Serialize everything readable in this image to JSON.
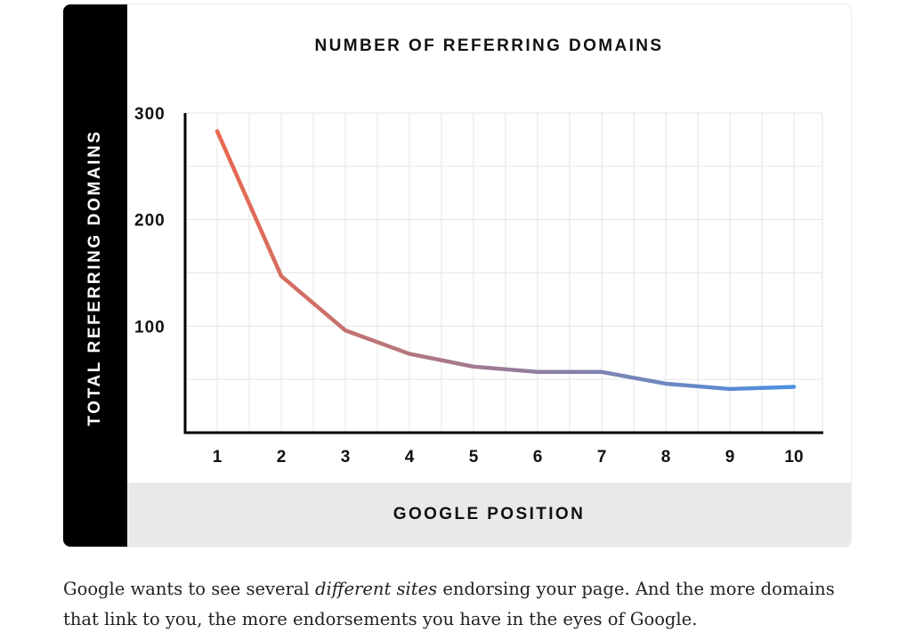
{
  "chart_data": {
    "type": "line",
    "title": "NUMBER OF REFERRING DOMAINS",
    "xlabel": "GOOGLE POSITION",
    "ylabel": "TOTAL REFERRING DOMAINS",
    "categories": [
      "1",
      "2",
      "3",
      "4",
      "5",
      "6",
      "7",
      "8",
      "9",
      "10"
    ],
    "series": [
      {
        "values": [
          283,
          147,
          96,
          74,
          62,
          57,
          57,
          46,
          41,
          43
        ]
      }
    ],
    "ylim": [
      0,
      300
    ],
    "yticks": [
      100,
      200,
      300
    ],
    "grid": true,
    "colors": {
      "line_start": "#e8694e",
      "line_end": "#4a90e2"
    }
  },
  "caption": {
    "part1": "Google wants to see several ",
    "emphasis": "different sites",
    "part2": " endorsing your page. And the more domains that link to you, the more endorsements you have in the eyes of Google."
  }
}
